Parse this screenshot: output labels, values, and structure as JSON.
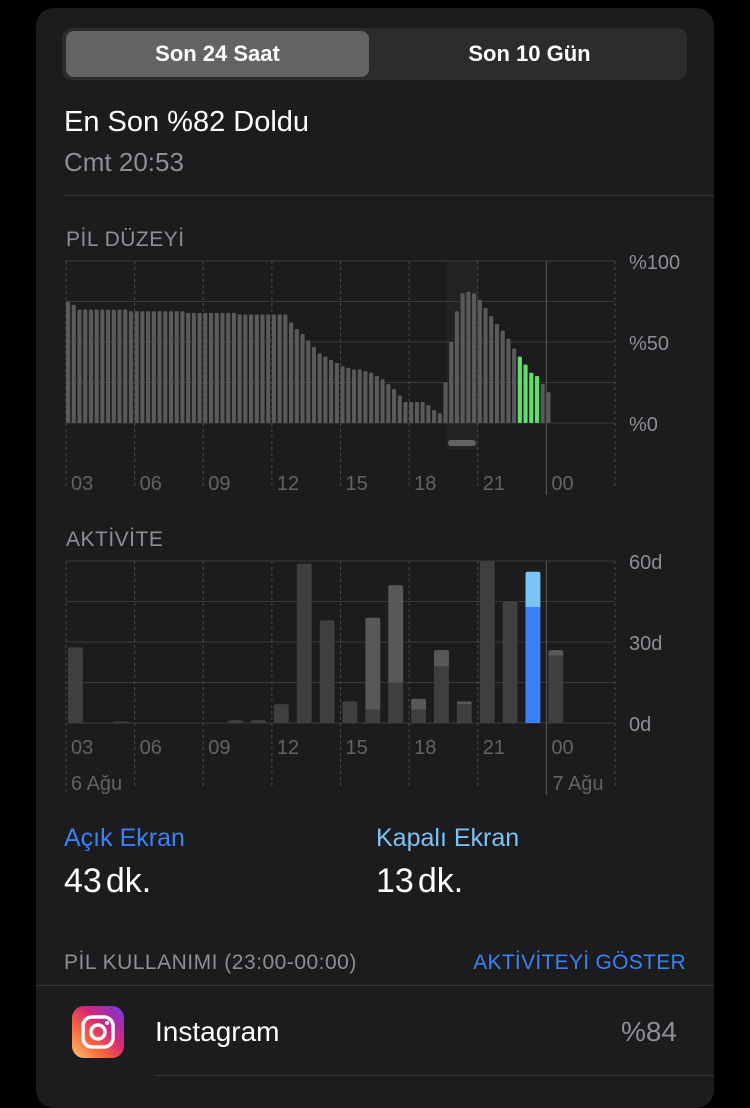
{
  "segmented": {
    "options": [
      "Son 24 Saat",
      "Son 10 Gün"
    ],
    "selected": "Son 24 Saat"
  },
  "last_charge": {
    "title": "En Son %82 Doldu",
    "time": "Cmt 20:53"
  },
  "colors": {
    "card": "#1c1c1e",
    "bar_gray": "#5a5a5c",
    "charging_green": "#5ee06a",
    "screen_on": "#3b82f6",
    "screen_off": "#7cc3f5",
    "accent_link": "#3b82f6"
  },
  "chart_data": [
    {
      "type": "bar",
      "title": "PİL DÜZEYİ",
      "interval_minutes": 15,
      "x_tick_labels": [
        "03",
        "06",
        "09",
        "12",
        "15",
        "18",
        "21",
        "00"
      ],
      "y_tick_labels": [
        "%100",
        "%50",
        "%0"
      ],
      "ylim": [
        0,
        100
      ],
      "grid": true,
      "values": [
        75,
        73,
        70,
        70,
        70,
        70,
        70,
        70,
        70,
        70,
        70,
        69,
        69,
        69,
        69,
        69,
        69,
        69,
        69,
        69,
        69,
        68,
        68,
        68,
        68,
        68,
        68,
        68,
        68,
        68,
        67,
        67,
        67,
        67,
        67,
        67,
        67,
        67,
        67,
        62,
        58,
        55,
        51,
        47,
        43,
        41,
        39,
        37,
        35,
        34,
        33,
        33,
        32,
        31,
        29,
        27,
        24,
        21,
        17,
        13,
        13,
        13,
        13,
        11,
        8,
        6,
        25,
        50,
        69,
        80,
        81,
        80,
        76,
        71,
        66,
        61,
        57,
        52,
        46,
        41,
        36,
        31,
        29,
        24,
        19
      ],
      "charging_bar_indices": [
        79,
        80,
        81,
        82
      ]
    },
    {
      "type": "bar",
      "title": "AKTİVİTE",
      "x_tick_labels": [
        "03",
        "06",
        "09",
        "12",
        "15",
        "18",
        "21",
        "00"
      ],
      "date_labels": [
        "6 Ağu",
        "7 Ağu"
      ],
      "y_tick_labels": [
        "60d",
        "30d",
        "0d"
      ],
      "ylim": [
        0,
        60
      ],
      "grid": true,
      "hours": [
        "03",
        "04",
        "05",
        "06",
        "07",
        "08",
        "09",
        "10",
        "11",
        "12",
        "13",
        "14",
        "15",
        "16",
        "17",
        "18",
        "19",
        "20",
        "21",
        "22",
        "23",
        "00"
      ],
      "series": [
        {
          "name": "Açık Ekran",
          "values": [
            28,
            0,
            0.5,
            0,
            0,
            0,
            0,
            1,
            1,
            7,
            59,
            38,
            8,
            5,
            15,
            5,
            21,
            7,
            60,
            45,
            43,
            25
          ]
        },
        {
          "name": "Kapalı Ekran",
          "values": [
            0,
            0,
            0,
            0,
            0,
            0,
            0,
            0,
            0,
            0,
            0,
            0,
            0,
            34,
            36,
            4,
            6,
            1,
            0,
            0,
            13,
            2
          ]
        }
      ],
      "selected_hour": "23"
    }
  ],
  "stats": {
    "on": {
      "label": "Açık Ekran",
      "value": "43",
      "unit": "dk."
    },
    "off": {
      "label": "Kapalı Ekran",
      "value": "13",
      "unit": "dk."
    }
  },
  "usage": {
    "header": "PİL KULLANIMI (23:00-00:00)",
    "show_activity": "AKTİVİTEYİ GÖSTER",
    "apps": [
      {
        "name": "Instagram",
        "percent": "%84",
        "icon": "instagram-icon"
      }
    ]
  }
}
